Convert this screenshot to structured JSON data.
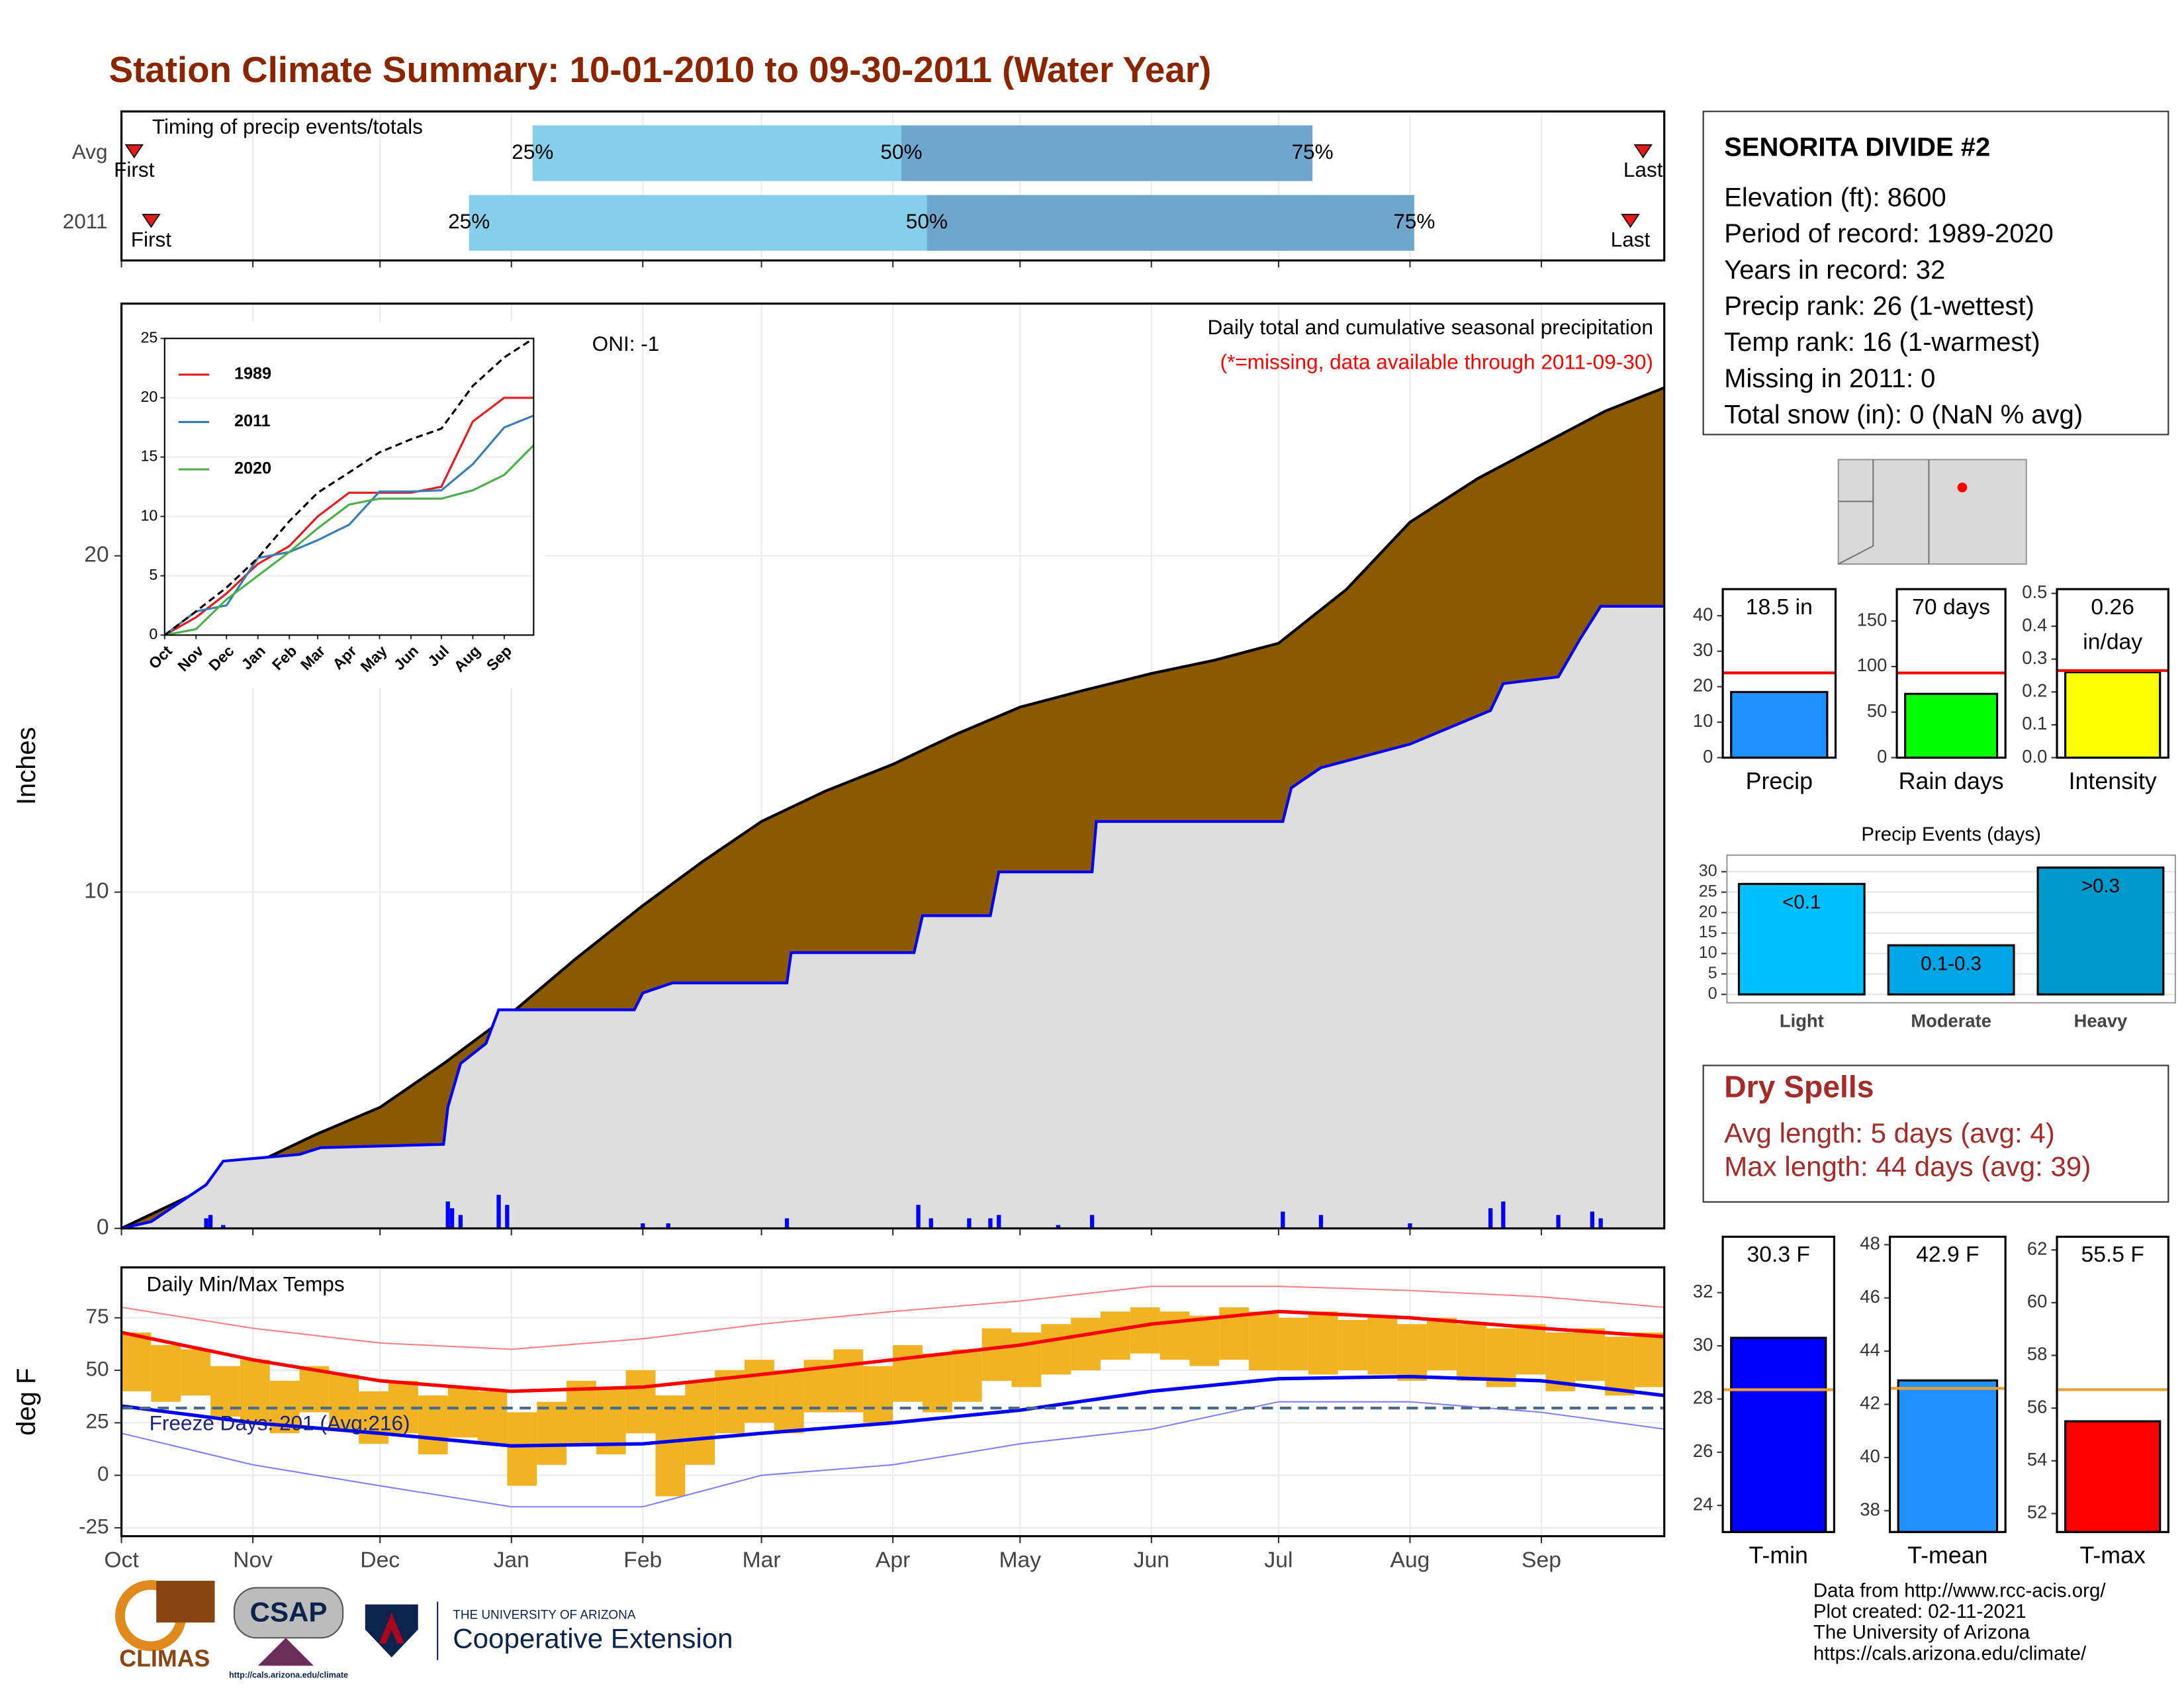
{
  "title": "Station Climate Summary: 10-01-2010 to 09-30-2011 (Water Year)",
  "chart_data": [
    {
      "type": "timing",
      "title": "Timing of precip events/totals",
      "categories": [
        "Avg",
        "2011"
      ],
      "first": [
        3,
        7
      ],
      "q25": [
        97,
        82
      ],
      "q50": [
        184,
        190
      ],
      "q75": [
        281,
        305
      ],
      "last": [
        359,
        356
      ],
      "quantile_labels": [
        "25%",
        "50%",
        "75%"
      ],
      "first_label": "First",
      "last_label": "Last",
      "colors": [
        "#87ceeb",
        "#6ea6cd"
      ],
      "marker_color": "#e41a1c",
      "xlim": [
        0,
        364
      ],
      "xticks": [
        0,
        31,
        61,
        92,
        123,
        151,
        182,
        212,
        243,
        273,
        304,
        335
      ],
      "grid": true
    },
    {
      "type": "cumulative",
      "title": "Daily total and cumulative seasonal precipitation",
      "subtitle": "(*=missing, data available through 2011-09-30)",
      "annotation": "ONI: -1",
      "y_label": "Inches",
      "xlim": [
        0,
        364
      ],
      "ylim": [
        0,
        27.5
      ],
      "xticks": [
        0,
        31,
        61,
        92,
        123,
        151,
        182,
        212,
        243,
        273,
        304,
        335
      ],
      "yticks": [
        0,
        10,
        20
      ],
      "grid": true,
      "series": [
        {
          "color": "#8b5a00",
          "line_color": "#000000",
          "x": [
            0,
            15,
            31,
            46,
            61,
            76,
            92,
            107,
            123,
            137,
            151,
            166,
            182,
            197,
            212,
            227,
            243,
            258,
            273,
            289,
            304,
            320,
            335,
            350,
            364
          ],
          "values": [
            0,
            0.9,
            1.9,
            2.8,
            3.6,
            4.9,
            6.4,
            8.0,
            9.6,
            10.9,
            12.1,
            13.0,
            13.8,
            14.7,
            15.5,
            16.0,
            16.5,
            16.9,
            17.4,
            19.0,
            21.0,
            22.3,
            23.3,
            24.3,
            25.0
          ]
        },
        {
          "color": "#dedede",
          "line_color": "#0000ff",
          "x": [
            0,
            7,
            20,
            24,
            42,
            47,
            76,
            77,
            80,
            86,
            89,
            121,
            123,
            130,
            157,
            158,
            187,
            189,
            205,
            207,
            229,
            230,
            274,
            276,
            283,
            304,
            323,
            326,
            339,
            344,
            349,
            364
          ],
          "values": [
            0,
            0.2,
            1.3,
            2.0,
            2.2,
            2.4,
            2.5,
            3.6,
            4.9,
            5.5,
            6.5,
            6.5,
            7.0,
            7.3,
            7.3,
            8.2,
            8.2,
            9.3,
            9.3,
            10.6,
            10.6,
            12.1,
            12.1,
            13.1,
            13.7,
            14.4,
            15.4,
            16.2,
            16.4,
            17.5,
            18.5,
            18.5
          ]
        }
      ],
      "daily": {
        "color": "#0000ff",
        "x": [
          20,
          21,
          24,
          77,
          78,
          80,
          89,
          91,
          123,
          129,
          157,
          188,
          191,
          200,
          205,
          207,
          221,
          229,
          274,
          283,
          304,
          323,
          326,
          339,
          347,
          349
        ],
        "values": [
          0.3,
          0.4,
          0.1,
          0.8,
          0.6,
          0.4,
          1.0,
          0.7,
          0.15,
          0.15,
          0.3,
          0.7,
          0.3,
          0.3,
          0.3,
          0.4,
          0.1,
          0.4,
          0.5,
          0.4,
          0.15,
          0.6,
          0.8,
          0.4,
          0.5,
          0.3
        ]
      }
    },
    {
      "type": "line",
      "xlim": [
        0,
        364
      ],
      "ylim": [
        0,
        25
      ],
      "yticks": [
        0,
        5,
        10,
        15,
        20,
        25
      ],
      "xticks": [
        {
          "value": 0,
          "label": "Oct"
        },
        {
          "value": 31,
          "label": "Nov"
        },
        {
          "value": 61,
          "label": "Dec"
        },
        {
          "value": 92,
          "label": "Jan"
        },
        {
          "value": 123,
          "label": "Feb"
        },
        {
          "value": 151,
          "label": "Mar"
        },
        {
          "value": 182,
          "label": "Apr"
        },
        {
          "value": 212,
          "label": "May"
        },
        {
          "value": 243,
          "label": "Jun"
        },
        {
          "value": 273,
          "label": "Jul"
        },
        {
          "value": 304,
          "label": "Aug"
        },
        {
          "value": 335,
          "label": "Sep"
        }
      ],
      "x": [
        0,
        31,
        61,
        92,
        123,
        151,
        182,
        212,
        243,
        273,
        304,
        335,
        364
      ],
      "series": [
        {
          "name": "1989",
          "color": "#e41a1c",
          "values": [
            0,
            1.5,
            3.5,
            6,
            7.5,
            10,
            12,
            12,
            12,
            12.5,
            18,
            20,
            20
          ]
        },
        {
          "name": "2011",
          "color": "#377eb8",
          "values": [
            0,
            2,
            2.5,
            6.5,
            7,
            8,
            9.3,
            12.1,
            12.1,
            12.2,
            14.4,
            17.5,
            18.5
          ]
        },
        {
          "name": "2020",
          "color": "#4daf4a",
          "values": [
            0,
            0.5,
            3,
            5,
            7,
            9,
            11,
            11.5,
            11.5,
            11.5,
            12.2,
            13.5,
            16
          ]
        },
        {
          "color": "#000000",
          "dash": true,
          "values": [
            0,
            2,
            4,
            6.5,
            9.6,
            12,
            13.7,
            15.4,
            16.5,
            17.4,
            21,
            23.4,
            25
          ]
        }
      ]
    },
    {
      "type": "temperature",
      "title": "Daily Min/Max Temps",
      "annotation": "Freeze Days: 201 (Avg:216)",
      "y_label": "deg F",
      "xlim": [
        0,
        364
      ],
      "ylim": [
        -29,
        99
      ],
      "yticks": [
        -25,
        0,
        25,
        50,
        75
      ],
      "grid": true,
      "xticks": [
        {
          "value": 0,
          "label": "Oct"
        },
        {
          "value": 31,
          "label": "Nov"
        },
        {
          "value": 61,
          "label": "Dec"
        },
        {
          "value": 92,
          "label": "Jan"
        },
        {
          "value": 123,
          "label": "Feb"
        },
        {
          "value": 151,
          "label": "Mar"
        },
        {
          "value": 182,
          "label": "Apr"
        },
        {
          "value": 212,
          "label": "May"
        },
        {
          "value": 243,
          "label": "Jun"
        },
        {
          "value": 273,
          "label": "Jul"
        },
        {
          "value": 304,
          "label": "Aug"
        },
        {
          "value": 335,
          "label": "Sep"
        }
      ],
      "bars": {
        "color": "#f0b323",
        "x": [
          0,
          7,
          14,
          21,
          28,
          35,
          42,
          49,
          56,
          63,
          70,
          77,
          84,
          91,
          98,
          105,
          112,
          119,
          126,
          133,
          140,
          147,
          154,
          161,
          168,
          175,
          182,
          189,
          196,
          203,
          210,
          217,
          224,
          231,
          238,
          245,
          252,
          259,
          266,
          273,
          280,
          287,
          294,
          301,
          308,
          315,
          322,
          329,
          336,
          343,
          350,
          357,
          364
        ],
        "high": [
          68,
          62,
          60,
          52,
          55,
          45,
          52,
          48,
          40,
          45,
          38,
          42,
          40,
          30,
          35,
          45,
          42,
          50,
          38,
          45,
          50,
          55,
          50,
          55,
          60,
          52,
          62,
          58,
          60,
          70,
          68,
          72,
          75,
          78,
          80,
          78,
          76,
          80,
          78,
          75,
          78,
          74,
          76,
          72,
          75,
          72,
          70,
          72,
          68,
          70,
          66,
          68,
          65
        ],
        "low": [
          40,
          35,
          38,
          28,
          25,
          20,
          30,
          22,
          15,
          20,
          10,
          18,
          15,
          -5,
          5,
          15,
          10,
          20,
          -10,
          5,
          20,
          25,
          20,
          30,
          30,
          25,
          35,
          30,
          35,
          45,
          42,
          48,
          50,
          55,
          58,
          55,
          52,
          55,
          50,
          50,
          48,
          50,
          48,
          45,
          50,
          45,
          42,
          48,
          40,
          45,
          38,
          42,
          40
        ]
      },
      "x": [
        0,
        31,
        61,
        92,
        123,
        151,
        182,
        212,
        243,
        273,
        304,
        335,
        364
      ],
      "series": [
        {
          "color": "#ff8080",
          "width": 1,
          "values": [
            80,
            70,
            63,
            60,
            65,
            72,
            78,
            83,
            90,
            90,
            88,
            85,
            80
          ]
        },
        {
          "color": "#8080ff",
          "width": 1,
          "values": [
            20,
            5,
            -5,
            -15,
            -15,
            0,
            5,
            15,
            22,
            35,
            35,
            30,
            22
          ]
        },
        {
          "color": "#ff0000",
          "width": 2.5,
          "values": [
            68,
            55,
            45,
            40,
            42,
            48,
            55,
            62,
            72,
            78,
            75,
            70,
            66
          ]
        },
        {
          "color": "#0000ff",
          "width": 2.5,
          "values": [
            33,
            25,
            20,
            14,
            15,
            20,
            25,
            31,
            40,
            46,
            47,
            45,
            38
          ]
        }
      ],
      "freeze_line": 32,
      "freeze_color": "#4a6b8a"
    },
    {
      "type": "bar",
      "categories": [
        "Precip"
      ],
      "values": [
        18.5
      ],
      "value_labels": [
        "18.5 in"
      ],
      "color": "#1e90ff",
      "average": 23.9,
      "average_color": "#ff0000",
      "ylim": [
        0,
        47.5
      ],
      "yticks": [
        0,
        10,
        20,
        30,
        40
      ]
    },
    {
      "type": "bar",
      "categories": [
        "Rain days"
      ],
      "values": [
        70
      ],
      "value_labels": [
        "70 days"
      ],
      "color": "#00ff00",
      "average": 93,
      "average_color": "#ff0000",
      "ylim": [
        0,
        185
      ],
      "yticks": [
        0,
        50,
        100,
        150
      ]
    },
    {
      "type": "bar",
      "categories": [
        "Intensity"
      ],
      "values": [
        0.26
      ],
      "value_labels": [
        "0.26 in/day"
      ],
      "color": "#ffff00",
      "average": 0.265,
      "average_color": "#ff0000",
      "ylim": [
        0,
        0.513
      ],
      "yticks": [
        {
          "value": 0,
          "label": "0.0"
        },
        0.1,
        0.2,
        0.3,
        0.4,
        0.5
      ]
    },
    {
      "type": "bar",
      "title": "Precip Events (days)",
      "categories": [
        "Light",
        "Moderate",
        "Heavy"
      ],
      "values": [
        27,
        12,
        31
      ],
      "bar_labels": [
        "<0.1",
        "0.1-0.3",
        ">0.3"
      ],
      "colors": [
        "#00bfff",
        "#00a5e6",
        "#0099cc"
      ],
      "ylim": [
        0,
        32
      ],
      "yticks": [
        0,
        5,
        10,
        15,
        20,
        25,
        30
      ],
      "grid": true
    },
    {
      "type": "bar",
      "categories": [
        "T-min"
      ],
      "values": [
        30.3
      ],
      "value_labels": [
        "30.3 F"
      ],
      "color": "#0000ff",
      "average": 28.35,
      "average_color": "#f0a030",
      "ylim": [
        23,
        34.1
      ],
      "yticks": [
        24,
        26,
        28,
        30,
        32
      ]
    },
    {
      "type": "bar",
      "categories": [
        "T-mean"
      ],
      "values": [
        42.9
      ],
      "value_labels": [
        "42.9 F"
      ],
      "color": "#1e90ff",
      "average": 42.6,
      "average_color": "#f0a030",
      "ylim": [
        37.2,
        48.3
      ],
      "yticks": [
        38,
        40,
        42,
        44,
        46,
        48
      ]
    },
    {
      "type": "bar",
      "categories": [
        "T-max"
      ],
      "values": [
        55.5
      ],
      "value_labels": [
        "55.5 F"
      ],
      "color": "#ff0000",
      "average": 56.7,
      "average_color": "#f0a030",
      "ylim": [
        51.3,
        62.5
      ],
      "yticks": [
        52,
        54,
        56,
        58,
        60,
        62
      ]
    }
  ],
  "station": {
    "name": "SENORITA DIVIDE #2",
    "lines": [
      "Elevation (ft): 8600",
      "Period of record: 1989-2020",
      "Years in record: 32",
      "Precip rank: 26 (1-wettest)",
      "Temp rank: 16 (1-warmest)",
      "Missing in 2011: 0",
      "Total snow (in): 0 (NaN % avg)"
    ]
  },
  "dry_spells": {
    "title": "Dry Spells",
    "lines": [
      "Avg length: 5 days (avg: 4)",
      "Max length: 44 days (avg: 39)"
    ]
  },
  "footer": {
    "logos": [
      "CLIMAS",
      "CSAP",
      "http://cals.arizona.edu/climate",
      "THE UNIVERSITY OF ARIZONA",
      "Cooperative Extension"
    ],
    "credits": [
      "Data from http://www.rcc-acis.org/",
      "Plot created: 02-11-2021",
      "The University of Arizona",
      "https://cals.arizona.edu/climate/"
    ]
  }
}
